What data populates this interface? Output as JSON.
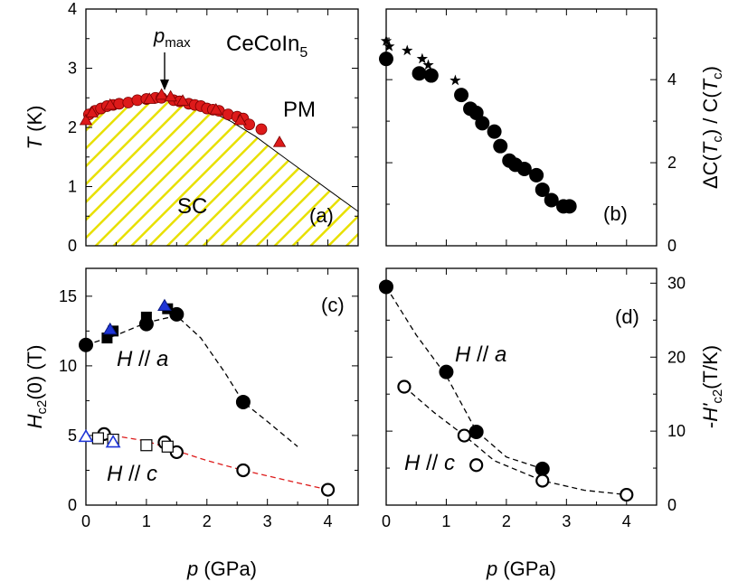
{
  "chart_data": [
    {
      "id": "a",
      "type": "scatter",
      "panel_label": "(a)",
      "annotations": {
        "compound": "CeCoIn",
        "compound_sub": "5",
        "pmax": "p",
        "pmax_sub": "max",
        "pm": "PM",
        "sc": "SC"
      },
      "xlim": [
        0,
        4.5
      ],
      "ylim": [
        0,
        4
      ],
      "yticks": [
        "0",
        "1",
        "2",
        "3",
        "4"
      ],
      "ylabel": "T",
      "ylabel_unit": "(K)",
      "boundary": [
        [
          0,
          2.18
        ],
        [
          0.2,
          2.3
        ],
        [
          0.5,
          2.4
        ],
        [
          0.8,
          2.47
        ],
        [
          1.1,
          2.52
        ],
        [
          1.3,
          2.54
        ],
        [
          1.6,
          2.47
        ],
        [
          2.0,
          2.3
        ],
        [
          2.4,
          2.1
        ],
        [
          2.8,
          1.85
        ],
        [
          3.2,
          1.55
        ],
        [
          3.6,
          1.25
        ],
        [
          4.0,
          0.95
        ],
        [
          4.5,
          0.58
        ]
      ],
      "series": [
        {
          "marker": "circle",
          "color": "#dd1a1a",
          "x": [
            0.05,
            0.15,
            0.25,
            0.35,
            0.45,
            0.55,
            0.7,
            0.85,
            1.0,
            1.15,
            1.25,
            1.45,
            1.55,
            1.7,
            1.8,
            1.9,
            2.0,
            2.1,
            2.2,
            2.35,
            2.5,
            2.6,
            2.7,
            2.9
          ],
          "y": [
            2.22,
            2.28,
            2.32,
            2.36,
            2.38,
            2.4,
            2.42,
            2.46,
            2.48,
            2.5,
            2.5,
            2.46,
            2.44,
            2.4,
            2.38,
            2.36,
            2.32,
            2.3,
            2.28,
            2.22,
            2.18,
            2.15,
            2.05,
            1.97
          ]
        },
        {
          "marker": "triangle",
          "color": "#dd1a1a",
          "x": [
            0.0,
            0.1,
            0.4,
            1.05,
            1.25,
            1.4,
            1.6,
            2.15,
            2.55,
            3.2
          ],
          "y": [
            2.12,
            2.25,
            2.38,
            2.48,
            2.55,
            2.52,
            2.45,
            2.3,
            2.12,
            1.75
          ]
        }
      ]
    },
    {
      "id": "b",
      "type": "scatter",
      "panel_label": "(b)",
      "xlim": [
        0,
        4.5
      ],
      "ylim": [
        0,
        5.7
      ],
      "yticks": [
        "0",
        "2",
        "4"
      ],
      "ylabel": "ΔC(T_c) / C(T_c)",
      "series": [
        {
          "marker": "circle-filled",
          "color": "#000000",
          "x": [
            0.0,
            0.55,
            0.75,
            1.25,
            1.4,
            1.5,
            1.6,
            1.8,
            1.9,
            2.05,
            2.15,
            2.3,
            2.5,
            2.6,
            2.75,
            2.95,
            3.05
          ],
          "y": [
            4.5,
            4.15,
            4.1,
            3.63,
            3.3,
            3.2,
            2.95,
            2.75,
            2.4,
            2.05,
            1.95,
            1.85,
            1.7,
            1.35,
            1.1,
            0.95,
            0.95
          ]
        },
        {
          "marker": "star",
          "color": "#000000",
          "x": [
            0.0,
            0.05,
            0.35,
            0.6,
            0.7,
            1.15
          ],
          "y": [
            4.93,
            4.8,
            4.7,
            4.5,
            4.35,
            3.98
          ]
        }
      ]
    },
    {
      "id": "c",
      "type": "scatter",
      "panel_label": "(c)",
      "xlim": [
        0,
        4.5
      ],
      "ylim": [
        0,
        17
      ],
      "xticks": [
        "0",
        "1",
        "2",
        "3",
        "4"
      ],
      "yticks": [
        "0",
        "5",
        "10",
        "15"
      ],
      "xlabel": "p",
      "xlabel_unit": "(GPa)",
      "ylabel": "H_c2(0) (T)",
      "annotations": {
        "ha": "H // a",
        "hc": "H // c"
      },
      "series": [
        {
          "label": "H // a",
          "marker": "circle-filled",
          "color": "#000000",
          "x": [
            0.0,
            1.0,
            1.5,
            2.6
          ],
          "y": [
            11.5,
            13.0,
            13.7,
            7.4
          ]
        },
        {
          "label": "H // a",
          "marker": "square-filled",
          "color": "#000000",
          "x": [
            0.35,
            0.45,
            1.0,
            1.35
          ],
          "y": [
            12.0,
            12.5,
            13.5,
            14.1
          ]
        },
        {
          "label": "H // a",
          "marker": "triangle-filled",
          "color": "#1f35d6",
          "x": [
            0.4,
            1.3
          ],
          "y": [
            12.6,
            14.3
          ]
        },
        {
          "label": "H // c",
          "marker": "circle-open",
          "color": "#000000",
          "x": [
            0.3,
            1.3,
            1.5,
            2.6,
            4.0
          ],
          "y": [
            5.1,
            4.5,
            3.8,
            2.5,
            1.1
          ]
        },
        {
          "label": "H // c",
          "marker": "square-open",
          "color": "#000000",
          "x": [
            0.2,
            0.45,
            1.0,
            1.35
          ],
          "y": [
            4.8,
            4.7,
            4.3,
            4.2
          ]
        },
        {
          "label": "H // c",
          "marker": "triangle-open",
          "color": "#1f35d6",
          "x": [
            0.0,
            0.45
          ],
          "y": [
            4.9,
            4.5
          ]
        }
      ],
      "fits": [
        {
          "color": "#000000",
          "points": [
            [
              0.0,
              11.5
            ],
            [
              0.5,
              12.2
            ],
            [
              1.0,
              13.1
            ],
            [
              1.5,
              13.6
            ],
            [
              1.9,
              12.0
            ],
            [
              2.3,
              9.5
            ],
            [
              2.6,
              7.4
            ],
            [
              3.0,
              6.0
            ],
            [
              3.5,
              4.2
            ]
          ]
        },
        {
          "color": "#dd1a1a",
          "points": [
            [
              0.3,
              5.1
            ],
            [
              1.0,
              4.6
            ],
            [
              1.5,
              3.9
            ],
            [
              2.0,
              3.2
            ],
            [
              2.6,
              2.5
            ],
            [
              3.3,
              1.8
            ],
            [
              4.0,
              1.1
            ]
          ]
        }
      ]
    },
    {
      "id": "d",
      "type": "scatter",
      "panel_label": "(d)",
      "xlim": [
        0,
        4.5
      ],
      "ylim": [
        0,
        32
      ],
      "xticks": [
        "0",
        "1",
        "2",
        "3",
        "4"
      ],
      "yticks": [
        "0",
        "10",
        "20",
        "30"
      ],
      "xlabel": "p",
      "xlabel_unit": "(GPa)",
      "ylabel": "-H'_c2(T/K)",
      "annotations": {
        "ha": "H // a",
        "hc": "H // c"
      },
      "series": [
        {
          "label": "H // a",
          "marker": "circle-filled",
          "color": "#000000",
          "x": [
            0.0,
            1.0,
            1.5,
            2.6
          ],
          "y": [
            29.5,
            18.0,
            9.9,
            4.9
          ]
        },
        {
          "label": "H // c",
          "marker": "circle-open",
          "color": "#000000",
          "x": [
            0.3,
            1.3,
            1.5,
            2.6,
            4.0
          ],
          "y": [
            16.0,
            9.4,
            5.4,
            3.3,
            1.4
          ]
        }
      ],
      "fits": [
        {
          "color": "#000000",
          "points": [
            [
              0.0,
              29.5
            ],
            [
              0.5,
              23.0
            ],
            [
              1.0,
              17.5
            ],
            [
              1.5,
              10.0
            ],
            [
              2.0,
              6.5
            ],
            [
              2.6,
              4.9
            ]
          ]
        },
        {
          "color": "#000000",
          "points": [
            [
              0.3,
              16.0
            ],
            [
              0.8,
              12.5
            ],
            [
              1.3,
              9.4
            ],
            [
              1.8,
              6.0
            ],
            [
              2.6,
              3.3
            ],
            [
              3.3,
              2.0
            ],
            [
              4.0,
              1.4
            ]
          ]
        }
      ]
    }
  ]
}
